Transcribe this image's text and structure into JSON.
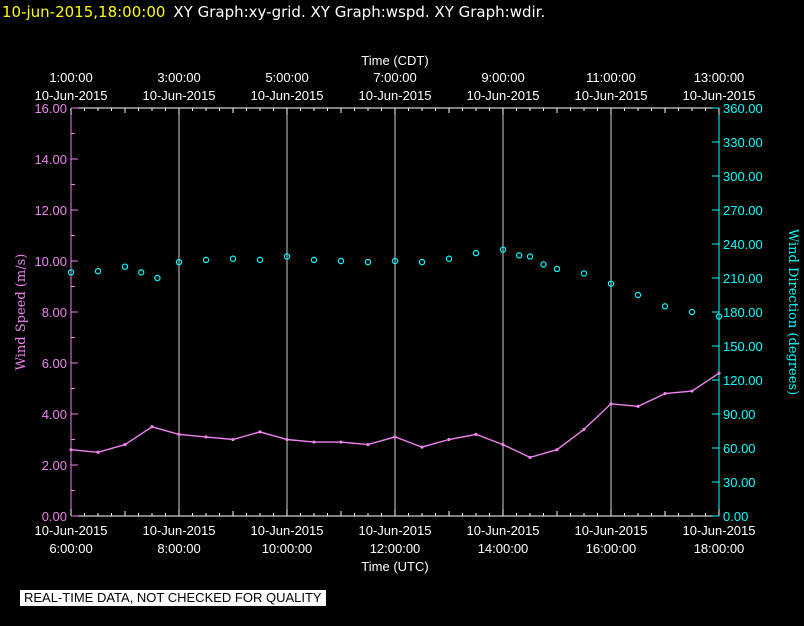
{
  "header": {
    "datetime": "10-jun-2015,18:00:00",
    "graphs": "XY Graph:xy-grid.  XY Graph:wspd.  XY Graph:wdir."
  },
  "banner": "REAL-TIME DATA, NOT CHECKED FOR QUALITY",
  "colors": {
    "background": "#000000",
    "wind_speed": "#ee82ee",
    "wind_direction": "#00ffff",
    "grid": "#ffffff",
    "header_date": "#ffff00"
  },
  "chart_data": {
    "type": "scatter",
    "x_top": {
      "title": "Time (CDT)",
      "ticks": [
        {
          "time": "1:00:00",
          "date": "10-Jun-2015"
        },
        {
          "time": "3:00:00",
          "date": "10-Jun-2015"
        },
        {
          "time": "5:00:00",
          "date": "10-Jun-2015"
        },
        {
          "time": "7:00:00",
          "date": "10-Jun-2015"
        },
        {
          "time": "9:00:00",
          "date": "10-Jun-2015"
        },
        {
          "time": "11:00:00",
          "date": "10-Jun-2015"
        },
        {
          "time": "13:00:00",
          "date": "10-Jun-2015"
        }
      ]
    },
    "x_bottom": {
      "title": "Time (UTC)",
      "range": [
        "2015-06-10T06:00:00",
        "2015-06-10T18:00:00"
      ],
      "ticks": [
        {
          "date": "10-Jun-2015",
          "time": "6:00:00"
        },
        {
          "date": "10-Jun-2015",
          "time": "8:00:00"
        },
        {
          "date": "10-Jun-2015",
          "time": "10:00:00"
        },
        {
          "date": "10-Jun-2015",
          "time": "12:00:00"
        },
        {
          "date": "10-Jun-2015",
          "time": "14:00:00"
        },
        {
          "date": "10-Jun-2015",
          "time": "16:00:00"
        },
        {
          "date": "10-Jun-2015",
          "time": "18:00:00"
        }
      ]
    },
    "y_left": {
      "title": "Wind Speed (m/s)",
      "range": [
        0,
        16
      ],
      "ticks": [
        "0.00",
        "2.00",
        "4.00",
        "6.00",
        "8.00",
        "10.00",
        "12.00",
        "14.00",
        "16.00"
      ]
    },
    "y_right": {
      "title": "Wind Direction (degrees)",
      "range": [
        0,
        360
      ],
      "ticks": [
        "0.00",
        "30.00",
        "60.00",
        "90.00",
        "120.00",
        "150.00",
        "180.00",
        "210.00",
        "240.00",
        "270.00",
        "300.00",
        "330.00",
        "360.00"
      ]
    },
    "grid": "vertical lines at major x ticks",
    "series": [
      {
        "kind": "line",
        "color": "#ee82ee",
        "axis": "left",
        "x_hours_utc": [
          6.0,
          6.5,
          7.0,
          7.5,
          8.0,
          8.5,
          9.0,
          9.5,
          10.0,
          10.5,
          11.0,
          11.5,
          12.0,
          12.5,
          13.0,
          13.5,
          14.0,
          14.5,
          15.0,
          15.5,
          16.0,
          16.5,
          17.0,
          17.5,
          18.0
        ],
        "values": [
          2.6,
          2.5,
          2.8,
          3.5,
          3.2,
          3.1,
          3.0,
          3.3,
          3.0,
          2.9,
          2.9,
          2.8,
          3.1,
          2.7,
          3.0,
          3.2,
          2.8,
          2.3,
          2.6,
          3.4,
          4.4,
          4.3,
          4.8,
          4.9,
          5.6
        ]
      },
      {
        "kind": "markers",
        "marker": "open-circle",
        "color": "#00ffff",
        "axis": "right",
        "x_hours_utc": [
          6.0,
          6.5,
          7.0,
          7.3,
          7.6,
          8.0,
          8.5,
          9.0,
          9.5,
          10.0,
          10.5,
          11.0,
          11.5,
          12.0,
          12.5,
          13.0,
          13.5,
          14.0,
          14.3,
          14.5,
          14.75,
          15.0,
          15.5,
          16.0,
          16.5,
          17.0,
          17.5,
          18.0
        ],
        "values": [
          215,
          216,
          220,
          215,
          210,
          224,
          226,
          227,
          226,
          229,
          226,
          225,
          224,
          225,
          224,
          227,
          232,
          235,
          230,
          229,
          222,
          218,
          214,
          205,
          195,
          185,
          180,
          176
        ]
      }
    ]
  }
}
